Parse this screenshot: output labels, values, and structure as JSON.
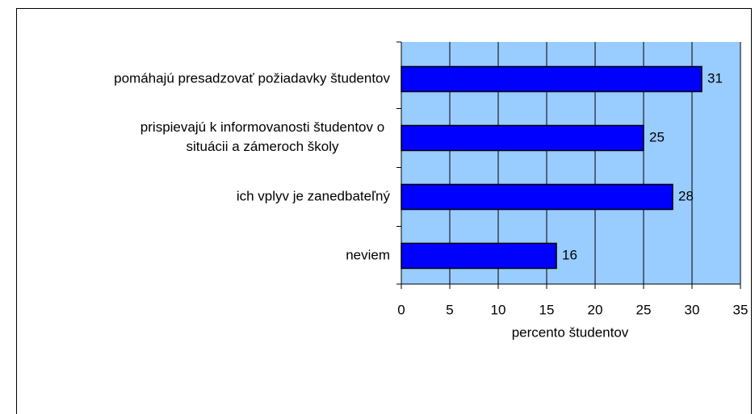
{
  "chart_data": {
    "type": "barh",
    "categories": [
      "pomáhajú presadzovať požiadavky študentov",
      "prispievajú k informovanosti študentov o\nsituácii a zámeroch školy",
      "ich vplyv je zanedbateľný",
      "neviem"
    ],
    "values": [
      31,
      25,
      28,
      16
    ],
    "color": "#0000ff",
    "xlabel": "percento študentov",
    "xlim": [
      0,
      35
    ],
    "xticks": [
      0,
      5,
      10,
      15,
      20,
      25,
      30,
      35
    ],
    "grid": true,
    "background": "#99ccff"
  }
}
